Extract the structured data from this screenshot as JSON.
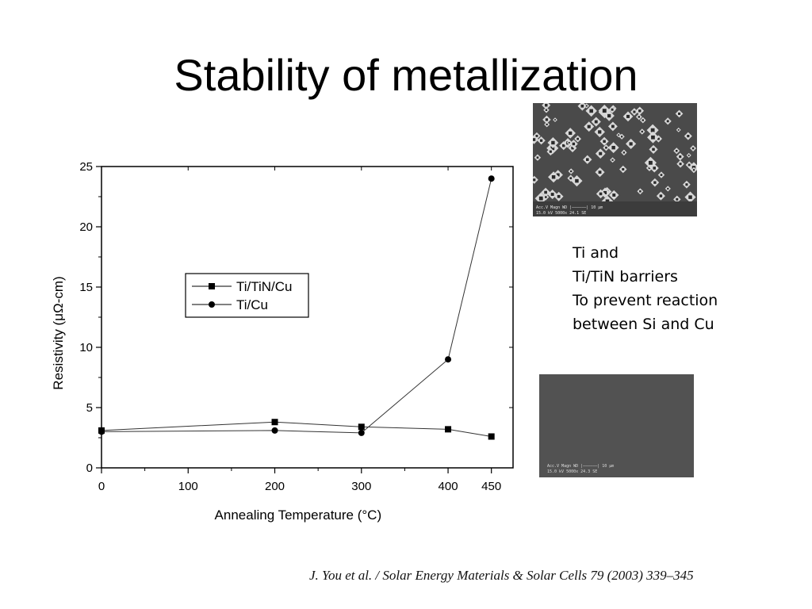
{
  "slide": {
    "title": "Stability of metallization"
  },
  "side_note": {
    "lines": [
      "Ti and",
      "Ti/TiN barriers",
      "To prevent reaction",
      "between Si and Cu"
    ]
  },
  "citation": "J. You et al. / Solar Energy Materials & Solar Cells 79 (2003) 339–345",
  "sem_images": {
    "top": {
      "caption_lines": [
        "Acc.V  Magn   WD  |——————|  10 μm",
        "15.0 kV 5000x  24.1 SE"
      ]
    },
    "bottom": {
      "caption_lines": [
        "Acc.V  Magn   WD  |——————|  10 μm",
        "15.0 kV 5000x  24.3 SE"
      ]
    }
  },
  "chart_data": {
    "type": "line",
    "xlabel": "Annealing Temperature (°C)",
    "ylabel": "Resistivity (μΩ-cm)",
    "xlim": [
      0,
      475
    ],
    "ylim": [
      0,
      25
    ],
    "x_ticks": [
      0,
      100,
      200,
      300,
      400,
      450
    ],
    "y_ticks": [
      0,
      5,
      10,
      15,
      20,
      25
    ],
    "legend_position": "center-left",
    "series": [
      {
        "name": "Ti/TiN/Cu",
        "marker": "square",
        "points": [
          [
            0,
            3.1
          ],
          [
            200,
            3.8
          ],
          [
            300,
            3.4
          ],
          [
            400,
            3.2
          ],
          [
            450,
            2.6
          ]
        ]
      },
      {
        "name": "Ti/Cu",
        "marker": "circle",
        "points": [
          [
            0,
            3.0
          ],
          [
            200,
            3.1
          ],
          [
            300,
            2.9
          ],
          [
            400,
            9.0
          ],
          [
            450,
            24.0
          ]
        ]
      }
    ]
  }
}
